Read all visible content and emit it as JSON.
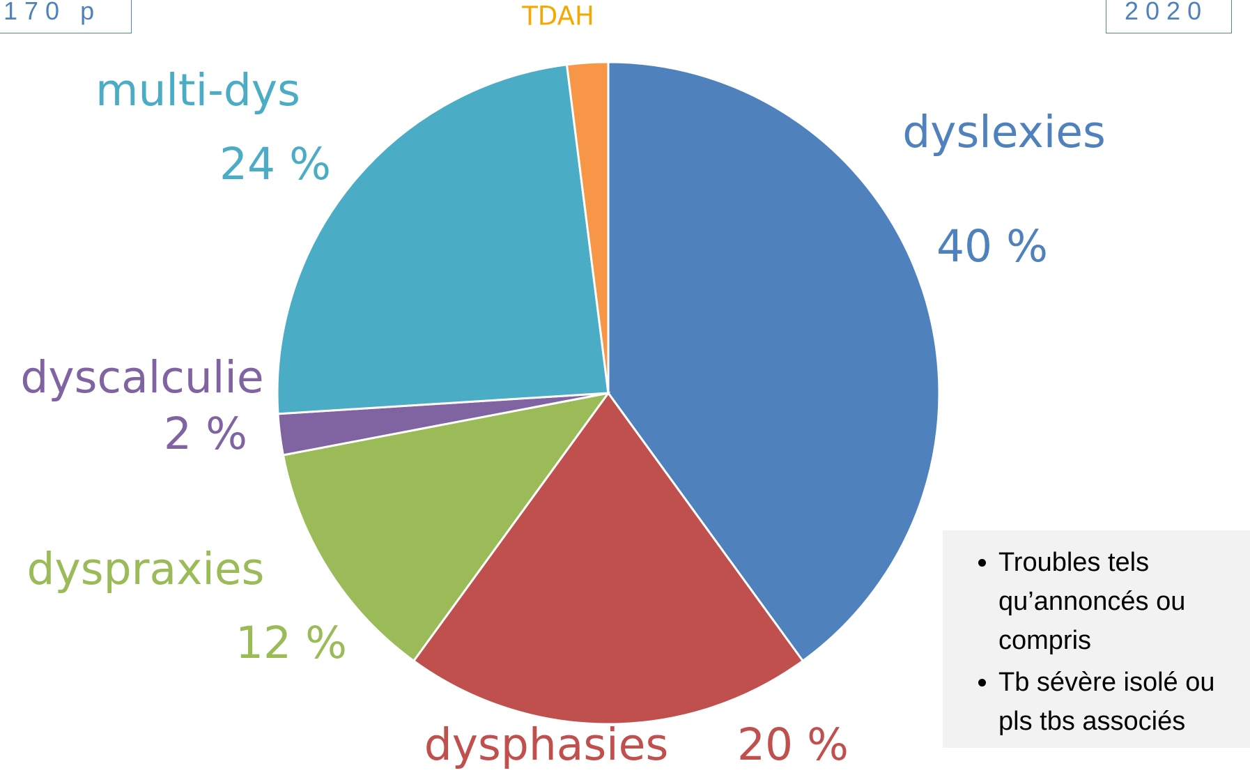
{
  "chart_data": {
    "type": "pie",
    "categories": [
      "dyslexies",
      "dysphasies",
      "dyspraxies",
      "dyscalculie",
      "multi-dys",
      "TDAH"
    ],
    "values": [
      40,
      20,
      12,
      2,
      24,
      2
    ],
    "value_labels": [
      "40 %",
      "20 %",
      "12 %",
      "2 %",
      "24 %",
      null
    ],
    "colors": [
      "#4f81bd",
      "#c0504d",
      "#9bbb59",
      "#8064a2",
      "#4bacc6",
      "#f79646"
    ],
    "label_colors": [
      "#4f81bd",
      "#c0504d",
      "#9bbb59",
      "#8064a2",
      "#4bacc6",
      "#f5a800"
    ]
  },
  "header": {
    "left": "170 p",
    "right": "2020"
  },
  "notes": [
    "Troubles tels qu’annoncés ou compris",
    "Tb sévère isolé ou pls tbs associés"
  ]
}
